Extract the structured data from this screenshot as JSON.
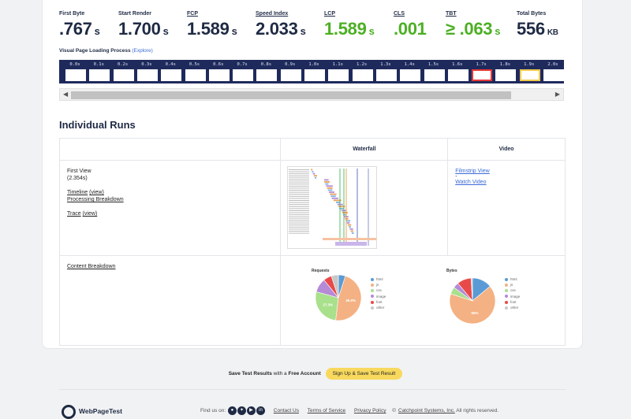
{
  "metrics": [
    {
      "label": "First Byte",
      "value": ".767",
      "unit": "s",
      "underline": false,
      "color": "#1f2a44"
    },
    {
      "label": "Start Render",
      "value": "1.700",
      "unit": "s",
      "underline": false,
      "color": "#1f2a44"
    },
    {
      "label": "FCP",
      "value": "1.589",
      "unit": "s",
      "underline": true,
      "color": "#1f2a44"
    },
    {
      "label": "Speed Index",
      "value": "2.033",
      "unit": "s",
      "underline": true,
      "color": "#1f2a44"
    },
    {
      "label": "LCP",
      "value": "1.589",
      "unit": "s",
      "underline": true,
      "color": "#4caf23"
    },
    {
      "label": "CLS",
      "value": ".001",
      "unit": "",
      "underline": true,
      "color": "#4caf23"
    },
    {
      "label": "TBT",
      "value": "≥ .063",
      "unit": "s",
      "underline": true,
      "color": "#4caf23"
    },
    {
      "label": "Total Bytes",
      "value": "556",
      "unit": "KB",
      "underline": false,
      "color": "#1f2a44"
    }
  ],
  "filmstrip": {
    "title": "Visual Page Loading Process",
    "explore": "(Explore)",
    "frames": [
      {
        "t": "0.0s",
        "state": "blank"
      },
      {
        "t": "0.1s",
        "state": "blank"
      },
      {
        "t": "0.2s",
        "state": "blank"
      },
      {
        "t": "0.3s",
        "state": "blank"
      },
      {
        "t": "0.4s",
        "state": "blank"
      },
      {
        "t": "0.5s",
        "state": "blank"
      },
      {
        "t": "0.6s",
        "state": "blank"
      },
      {
        "t": "0.7s",
        "state": "blank"
      },
      {
        "t": "0.8s",
        "state": "blank"
      },
      {
        "t": "0.9s",
        "state": "blank"
      },
      {
        "t": "1.0s",
        "state": "blank"
      },
      {
        "t": "1.1s",
        "state": "blank"
      },
      {
        "t": "1.2s",
        "state": "blank"
      },
      {
        "t": "1.3s",
        "state": "blank"
      },
      {
        "t": "1.4s",
        "state": "blank"
      },
      {
        "t": "1.5s",
        "state": "blank"
      },
      {
        "t": "1.6s",
        "state": "blank"
      },
      {
        "t": "1.7s",
        "state": "red"
      },
      {
        "t": "1.8s",
        "state": "blank"
      },
      {
        "t": "1.9s",
        "state": "yellow"
      },
      {
        "t": "2.0s",
        "state": "blank"
      }
    ]
  },
  "runs": {
    "title": "Individual Runs",
    "headers": {
      "waterfall": "Waterfall",
      "video": "Video"
    },
    "first_view": "First View",
    "first_view_time": "(2.354s)",
    "timeline": "Timeline",
    "timeline_view": "(view)",
    "processing": "Processing Breakdown",
    "trace": "Trace",
    "trace_view": "(view)",
    "filmstrip_view": "Filmstrip View",
    "dash": "-",
    "watch_video": "Watch Video",
    "content_breakdown": "Content Breakdown"
  },
  "pies": [
    {
      "title": "Requests",
      "slices": [
        {
          "name": "html",
          "value": 5,
          "color": "#5b9bd5"
        },
        {
          "name": "js",
          "value": 46.9,
          "color": "#f4b183"
        },
        {
          "name": "css",
          "value": 27.3,
          "color": "#a9e08c"
        },
        {
          "name": "image",
          "value": 10,
          "color": "#b58ad6"
        },
        {
          "name": "font",
          "value": 5.8,
          "color": "#e84a4a"
        },
        {
          "name": "other",
          "value": 5,
          "color": "#c8c8c8"
        }
      ],
      "labels": [
        {
          "text": "46.9%",
          "slice": 1
        },
        {
          "text": "27.3%",
          "slice": 2
        }
      ]
    },
    {
      "title": "Bytes",
      "slices": [
        {
          "name": "html",
          "value": 14,
          "color": "#5b9bd5"
        },
        {
          "name": "js",
          "value": 66,
          "color": "#f4b183"
        },
        {
          "name": "css",
          "value": 5,
          "color": "#a9e08c"
        },
        {
          "name": "image",
          "value": 4,
          "color": "#b58ad6"
        },
        {
          "name": "font",
          "value": 10,
          "color": "#e84a4a"
        },
        {
          "name": "other",
          "value": 1,
          "color": "#c8c8c8"
        }
      ],
      "labels": [
        {
          "text": "66%",
          "slice": 1
        }
      ]
    }
  ],
  "save": {
    "text_pre": "Save Test Results",
    "text_mid": " with a ",
    "text_bold": "Free Account",
    "button": "Sign Up & Save Test Result"
  },
  "footer": {
    "brand": "WebPageTest",
    "find_us": "Find us on:",
    "social": [
      "github-icon",
      "twitter-icon",
      "youtube-icon",
      "linkedin-icon"
    ],
    "contact": "Contact Us",
    "tos": "Terms of Service",
    "privacy": "Privacy Policy",
    "copyright_pre": "©",
    "company": "Catchpoint Systems, Inc.",
    "rights": "All rights reserved."
  }
}
